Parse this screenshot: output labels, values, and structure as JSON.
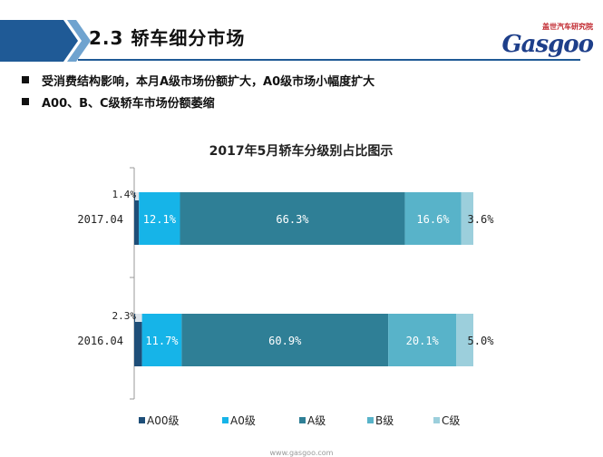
{
  "header": {
    "section_title": "2.3   轿车细分市场",
    "brand_sub": "盖世汽车研究院",
    "brand_main": "Gasgoo"
  },
  "bullets": [
    "受消费结构影响，本月A级市场份额扩大，A0级市场小幅度扩大",
    "A00、B、C级轿车市场份额萎缩"
  ],
  "colors": {
    "header_blue": "#1f5a96",
    "A00": "#1e4e78",
    "A0": "#16b4e8",
    "A": "#2f7f96",
    "B": "#58b3c9",
    "C": "#9ccfdc"
  },
  "chart_data": {
    "type": "bar",
    "orientation": "horizontal",
    "stacked": true,
    "title": "2017年5月轿车分级别占比图示",
    "categories": [
      "2017.04",
      "2016.04"
    ],
    "series": [
      {
        "name": "A00级",
        "values": [
          1.4,
          2.3
        ],
        "labels": [
          "1.4%",
          "2.3%"
        ]
      },
      {
        "name": "A0级",
        "values": [
          12.1,
          11.7
        ],
        "labels": [
          "12.1%",
          "11.7%"
        ]
      },
      {
        "name": "A级",
        "values": [
          66.3,
          60.9
        ],
        "labels": [
          "66.3%",
          "60.9%"
        ]
      },
      {
        "name": "B级",
        "values": [
          16.6,
          20.1
        ],
        "labels": [
          "16.6%",
          "20.1%"
        ]
      },
      {
        "name": "C级",
        "values": [
          3.6,
          5.0
        ],
        "labels": [
          "3.6%",
          "5.0%"
        ]
      }
    ],
    "xlim": [
      0,
      100
    ],
    "grid": false,
    "legend_position": "bottom"
  },
  "footer": "www.gasgoo.com"
}
